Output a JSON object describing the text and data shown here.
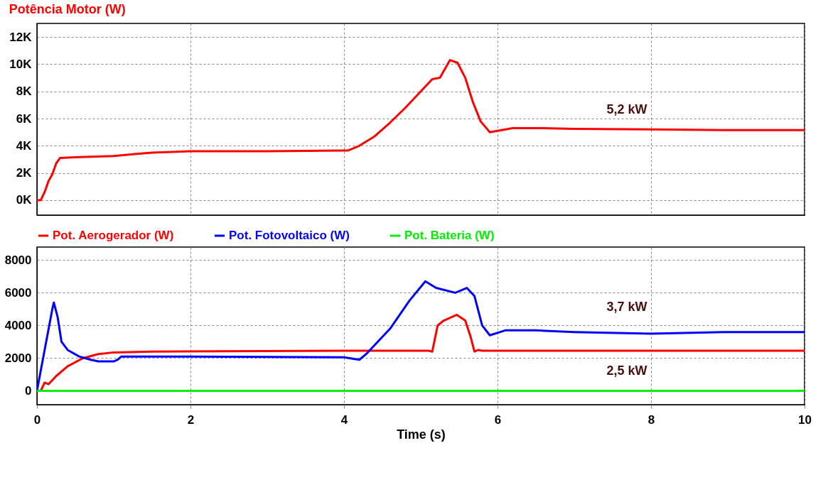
{
  "chart_data": [
    {
      "type": "line",
      "title": "Potência Motor (W)",
      "xlim": [
        0,
        10
      ],
      "xticks": [
        0,
        2,
        4,
        6,
        8,
        10
      ],
      "ylim": [
        -1100,
        13000
      ],
      "yticks": [
        {
          "value": 0,
          "label": "0K"
        },
        {
          "value": 2000,
          "label": "2K"
        },
        {
          "value": 4000,
          "label": "4K"
        },
        {
          "value": 6000,
          "label": "6K"
        },
        {
          "value": 8000,
          "label": "8K"
        },
        {
          "value": 10000,
          "label": "10K"
        },
        {
          "value": 12000,
          "label": "12K"
        }
      ],
      "grid": true,
      "tick_labels": "y",
      "line_style": "solid",
      "marker": "none",
      "annotations": [
        "5,2 kW"
      ],
      "series": [
        {
          "color": "#ff0000",
          "x": [
            0,
            0.05,
            0.1,
            0.15,
            0.2,
            0.25,
            0.3,
            0.5,
            1.0,
            1.3,
            1.5,
            2,
            3,
            4,
            4.05,
            4.2,
            4.4,
            4.6,
            4.8,
            5.0,
            5.15,
            5.25,
            5.38,
            5.48,
            5.58,
            5.68,
            5.78,
            5.9,
            6.0,
            6.2,
            6.5,
            7,
            8,
            9,
            10
          ],
          "values": [
            0,
            0,
            600,
            1400,
            1900,
            2700,
            3100,
            3150,
            3250,
            3400,
            3500,
            3600,
            3600,
            3650,
            3650,
            4000,
            4700,
            5700,
            6800,
            8000,
            8900,
            9000,
            10300,
            10100,
            9000,
            7200,
            5800,
            5000,
            5100,
            5300,
            5300,
            5250,
            5200,
            5150,
            5150
          ]
        }
      ]
    },
    {
      "type": "line",
      "xlabel": "Time (s)",
      "xlim": [
        0,
        10
      ],
      "xticks": [
        0,
        2,
        4,
        6,
        8,
        10
      ],
      "ylim": [
        -850,
        8800
      ],
      "yticks": [
        0,
        2000,
        4000,
        6000,
        8000
      ],
      "grid": true,
      "legend": "top left",
      "line_style": "solid",
      "marker": "none",
      "annotations": [
        "3,7 kW",
        "2,5 kW"
      ],
      "series": [
        {
          "name": "Pot. Aerogerador (W)",
          "color": "#ff0000",
          "x": [
            0,
            0.05,
            0.1,
            0.15,
            0.25,
            0.4,
            0.6,
            0.8,
            1.0,
            1.5,
            4,
            5.1,
            5.15,
            5.22,
            5.3,
            5.47,
            5.58,
            5.65,
            5.7,
            5.75,
            5.8,
            10
          ],
          "values": [
            0,
            0,
            500,
            400,
            900,
            1500,
            2000,
            2250,
            2350,
            2400,
            2450,
            2450,
            2400,
            4000,
            4300,
            4650,
            4300,
            3300,
            2400,
            2500,
            2450,
            2450
          ]
        },
        {
          "name": "Pot. Fotovoltaico (W)",
          "color": "#0000ff",
          "x": [
            0,
            0.1,
            0.2,
            0.22,
            0.27,
            0.32,
            0.4,
            0.55,
            0.7,
            0.8,
            1.0,
            1.05,
            1.1,
            2,
            4,
            4.2,
            4.3,
            4.6,
            4.85,
            5.06,
            5.2,
            5.45,
            5.6,
            5.7,
            5.8,
            5.9,
            6.1,
            6.5,
            7,
            8,
            9,
            10
          ],
          "values": [
            0,
            2500,
            5000,
            5400,
            4500,
            3000,
            2500,
            2100,
            1900,
            1800,
            1800,
            1900,
            2100,
            2100,
            2050,
            1900,
            2300,
            3800,
            5500,
            6700,
            6300,
            6000,
            6300,
            5800,
            4000,
            3400,
            3700,
            3700,
            3600,
            3500,
            3600,
            3600
          ]
        },
        {
          "name": "Pot. Bateria (W)",
          "color": "#00ee00",
          "x": [
            0,
            10
          ],
          "values": [
            0,
            0
          ]
        }
      ]
    }
  ]
}
